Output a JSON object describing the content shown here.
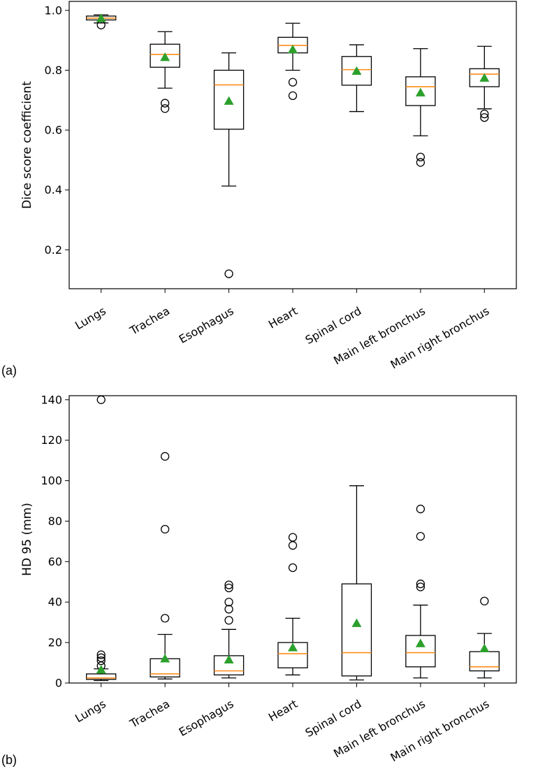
{
  "colors": {
    "median": "#ff8c1a",
    "mean": "#2ca02c",
    "box": "#000000"
  },
  "chart_data": [
    {
      "type": "box",
      "panel_label": "(a)",
      "ylabel": "Dice score coefficient",
      "ylim": [
        0.07,
        1.03
      ],
      "yticks": [
        0.2,
        0.4,
        0.6,
        0.8,
        1.0
      ],
      "ytick_labels": [
        "0.2",
        "0.4",
        "0.6",
        "0.8",
        "1.0"
      ],
      "categories": [
        "Lungs",
        "Trachea",
        "Esophagus",
        "Heart",
        "Spinal cord",
        "Main left bronchus",
        "Main right bronchus"
      ],
      "boxes": [
        {
          "q1": 0.968,
          "median": 0.974,
          "q3": 0.981,
          "whislo": 0.958,
          "whishi": 0.985,
          "mean": 0.973,
          "fliers": [
            0.951
          ]
        },
        {
          "q1": 0.81,
          "median": 0.853,
          "q3": 0.887,
          "whislo": 0.74,
          "whishi": 0.929,
          "mean": 0.843,
          "fliers": [
            0.69,
            0.672
          ]
        },
        {
          "q1": 0.603,
          "median": 0.751,
          "q3": 0.8,
          "whislo": 0.413,
          "whishi": 0.858,
          "mean": 0.697,
          "fliers": [
            0.12
          ]
        },
        {
          "q1": 0.858,
          "median": 0.883,
          "q3": 0.91,
          "whislo": 0.8,
          "whishi": 0.957,
          "mean": 0.869,
          "fliers": [
            0.76,
            0.715
          ]
        },
        {
          "q1": 0.75,
          "median": 0.802,
          "q3": 0.846,
          "whislo": 0.662,
          "whishi": 0.885,
          "mean": 0.797,
          "fliers": []
        },
        {
          "q1": 0.682,
          "median": 0.745,
          "q3": 0.778,
          "whislo": 0.581,
          "whishi": 0.872,
          "mean": 0.725,
          "fliers": [
            0.51,
            0.492
          ]
        },
        {
          "q1": 0.745,
          "median": 0.787,
          "q3": 0.805,
          "whislo": 0.671,
          "whishi": 0.88,
          "mean": 0.774,
          "fliers": [
            0.654,
            0.642
          ]
        }
      ]
    },
    {
      "type": "box",
      "panel_label": "(b)",
      "ylabel": "HD 95 (mm)",
      "ylim": [
        0,
        142
      ],
      "yticks": [
        0,
        20,
        40,
        60,
        80,
        100,
        120,
        140
      ],
      "ytick_labels": [
        "0",
        "20",
        "40",
        "60",
        "80",
        "100",
        "120",
        "140"
      ],
      "categories": [
        "Lungs",
        "Trachea",
        "Esophagus",
        "Heart",
        "Spinal cord",
        "Main left bronchus",
        "Main right bronchus"
      ],
      "boxes": [
        {
          "q1": 1.8,
          "median": 2.5,
          "q3": 4.5,
          "whislo": 1.2,
          "whishi": 7.0,
          "mean": 6.5,
          "fliers": [
            8.5,
            11.0,
            12.5,
            14.0,
            140.0
          ]
        },
        {
          "q1": 3.0,
          "median": 4.5,
          "q3": 12.0,
          "whislo": 2.0,
          "whishi": 24.0,
          "mean": 12.0,
          "fliers": [
            32.0,
            76.0,
            112.0
          ]
        },
        {
          "q1": 4.0,
          "median": 6.0,
          "q3": 13.5,
          "whislo": 2.5,
          "whishi": 26.5,
          "mean": 11.5,
          "fliers": [
            31.0,
            36.5,
            40.0,
            47.0,
            48.5
          ]
        },
        {
          "q1": 7.5,
          "median": 14.5,
          "q3": 20.0,
          "whislo": 4.0,
          "whishi": 32.0,
          "mean": 17.5,
          "fliers": [
            57.0,
            68.0,
            72.0
          ]
        },
        {
          "q1": 3.5,
          "median": 15.0,
          "q3": 49.0,
          "whislo": 1.5,
          "whishi": 97.5,
          "mean": 29.5,
          "fliers": []
        },
        {
          "q1": 8.0,
          "median": 15.0,
          "q3": 23.5,
          "whislo": 2.5,
          "whishi": 38.5,
          "mean": 19.5,
          "fliers": [
            47.5,
            49.0,
            72.5,
            86.0
          ]
        },
        {
          "q1": 6.0,
          "median": 8.0,
          "q3": 15.5,
          "whislo": 2.5,
          "whishi": 24.5,
          "mean": 17.0,
          "fliers": [
            40.5
          ]
        }
      ]
    }
  ]
}
